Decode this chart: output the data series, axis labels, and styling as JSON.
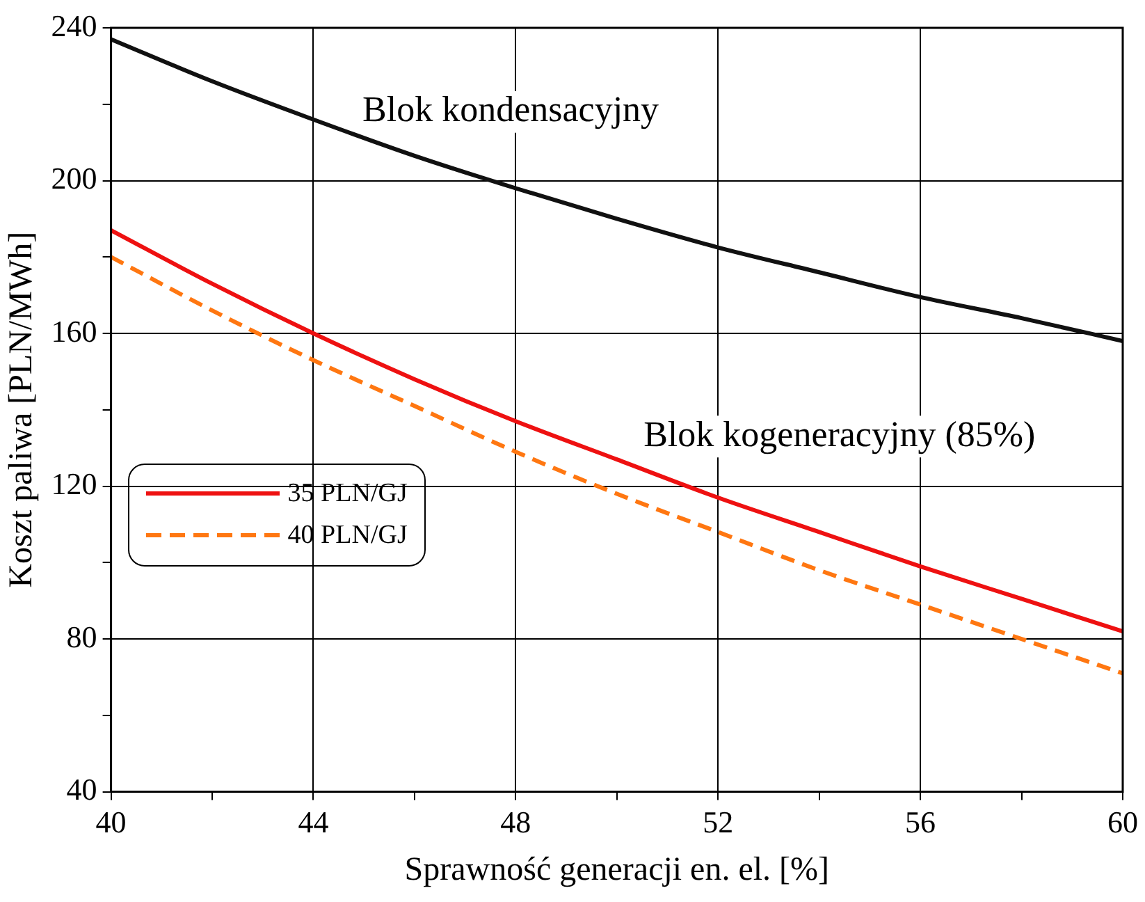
{
  "chart_data": {
    "type": "line",
    "xlabel": "Sprawność generacji en. el. [%]",
    "ylabel": "Koszt paliwa [PLN/MWh]",
    "x": [
      40,
      42,
      44,
      46,
      48,
      50,
      52,
      54,
      56,
      58,
      60
    ],
    "xlim": [
      40,
      60
    ],
    "xticks": [
      40,
      {
        "value": 42,
        "label": null
      },
      44,
      {
        "value": 46,
        "label": null
      },
      48,
      {
        "value": 50,
        "label": null
      },
      52,
      {
        "value": 54,
        "label": null
      },
      56,
      {
        "value": 58,
        "label": null
      },
      60
    ],
    "ylim": [
      40,
      240
    ],
    "yticks": [
      40,
      {
        "value": 60,
        "label": null
      },
      80,
      {
        "value": 100,
        "label": null
      },
      120,
      {
        "value": 140,
        "label": null
      },
      160,
      {
        "value": 180,
        "label": null
      },
      200,
      {
        "value": 220,
        "label": null
      },
      240
    ],
    "grid": true,
    "legend": "left",
    "marker": "none",
    "series": [
      {
        "color": "#111111",
        "values": [
          237,
          226,
          216,
          206.5,
          198,
          190,
          182.5,
          176,
          169.5,
          164,
          158
        ],
        "line_style": "solid"
      },
      {
        "name": "35 PLN/GJ",
        "color": "#ee1111",
        "values": [
          187,
          173,
          160,
          148,
          137,
          127,
          117,
          108,
          99,
          90.5,
          82
        ],
        "line_style": "solid"
      },
      {
        "name": "40 PLN/GJ",
        "color": "#ff7711",
        "values": [
          180,
          166,
          153,
          141,
          129,
          118,
          108,
          98,
          89,
          80,
          71
        ],
        "line_style": "dashed"
      }
    ],
    "annotations": [
      "Blok kondensacyjny",
      "Blok kogeneracyjny (85%)"
    ]
  }
}
